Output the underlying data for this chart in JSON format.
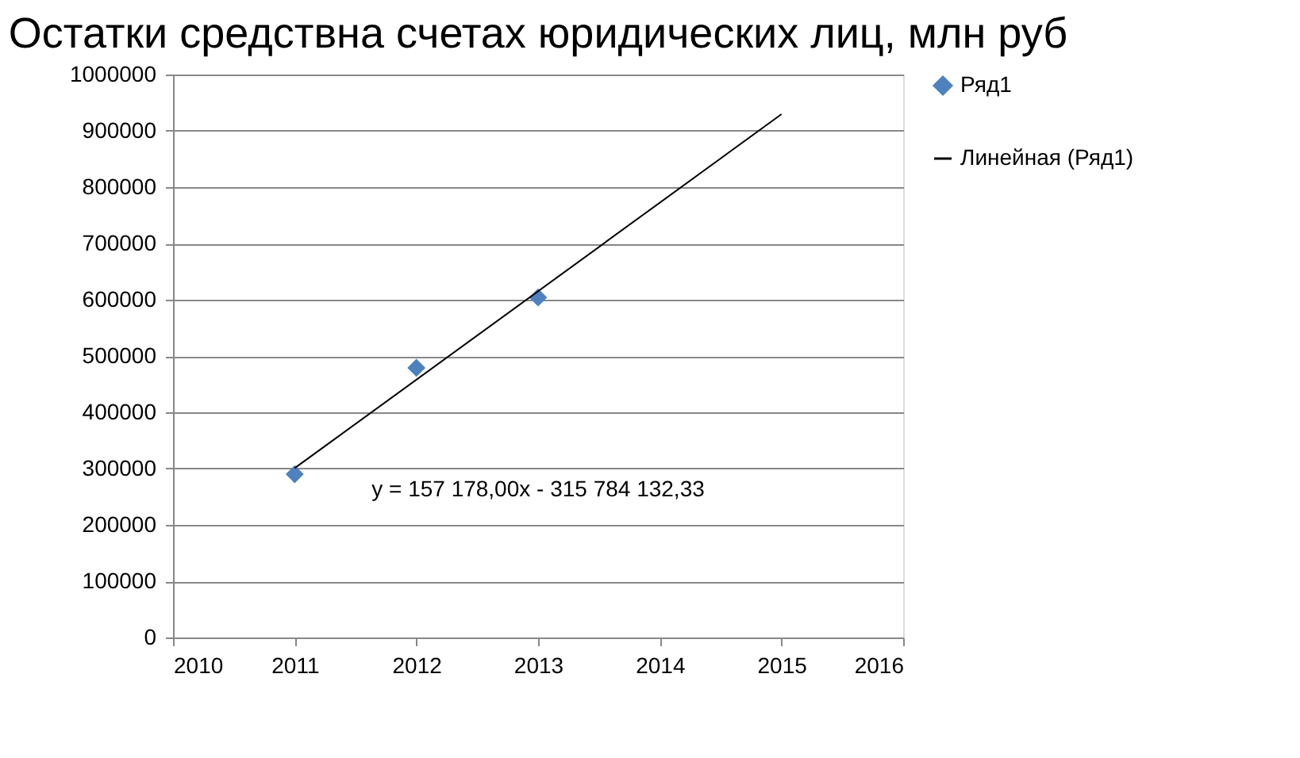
{
  "chart_data": {
    "type": "scatter",
    "title": "Остатки средствна счетах юридических лиц, млн руб",
    "x": [
      2011,
      2012,
      2013
    ],
    "series": [
      {
        "name": "Ряд1",
        "color": "#4f81bd",
        "values": [
          290000,
          479000,
          604000
        ],
        "marker": "diamond"
      },
      {
        "name": "Линейная (Ряд1)",
        "type": "line",
        "color": "#000000",
        "x": [
          2011,
          2015
        ],
        "values": [
          300800,
          929500
        ],
        "marker": "none",
        "line_style": "solid"
      }
    ],
    "annotations": [
      "y = 157 178,00x - 315 784 132,33"
    ],
    "xlim": [
      2010,
      2016
    ],
    "xticks": [
      2010,
      2011,
      2012,
      2013,
      2014,
      2015,
      2016
    ],
    "ylim": [
      0,
      1000000
    ],
    "yticks": [
      0,
      100000,
      200000,
      300000,
      400000,
      500000,
      600000,
      700000,
      800000,
      900000,
      1000000
    ],
    "grid": "y",
    "legend": "right"
  }
}
